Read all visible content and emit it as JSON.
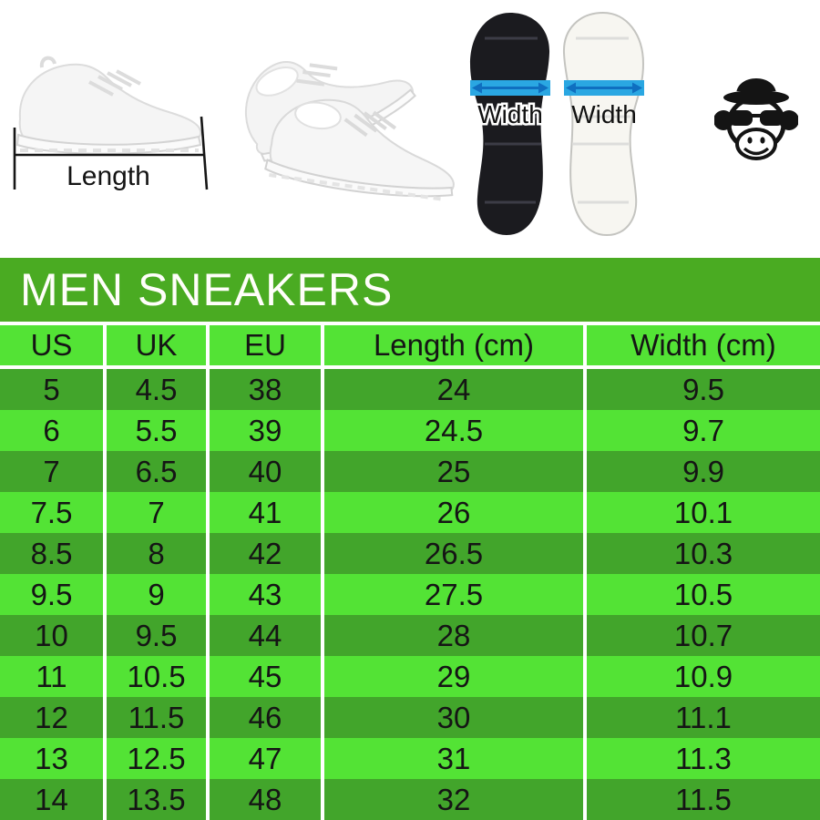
{
  "top_section": {
    "length_measure": {
      "label": "Length"
    },
    "soles": {
      "black_sole_width_label": "Width",
      "white_sole_width_label": "Width"
    },
    "logo": "monkey-with-bowler-hat-and-sunglasses"
  },
  "chart_data": {
    "type": "table",
    "title": "MEN SNEAKERS",
    "columns": [
      "US",
      "UK",
      "EU",
      "Length (cm)",
      "Width (cm)"
    ],
    "rows": [
      [
        "5",
        "4.5",
        "38",
        "24",
        "9.5"
      ],
      [
        "6",
        "5.5",
        "39",
        "24.5",
        "9.7"
      ],
      [
        "7",
        "6.5",
        "40",
        "25",
        "9.9"
      ],
      [
        "7.5",
        "7",
        "41",
        "26",
        "10.1"
      ],
      [
        "8.5",
        "8",
        "42",
        "26.5",
        "10.3"
      ],
      [
        "9.5",
        "9",
        "43",
        "27.5",
        "10.5"
      ],
      [
        "10",
        "9.5",
        "44",
        "28",
        "10.7"
      ],
      [
        "11",
        "10.5",
        "45",
        "29",
        "10.9"
      ],
      [
        "12",
        "11.5",
        "46",
        "30",
        "11.1"
      ],
      [
        "13",
        "12.5",
        "47",
        "31",
        "11.3"
      ],
      [
        "14",
        "13.5",
        "48",
        "32",
        "11.5"
      ]
    ]
  },
  "colors": {
    "title_bar_green": "#4aab22",
    "row_dark_green": "#42a52b",
    "row_light_green": "#53e335",
    "separator_white": "#ffffff",
    "table_text": "#151515",
    "title_text": "#ffffff",
    "width_arrow_blue": "#2aa7e2",
    "width_arrow_dark_blue": "#0f6fc0",
    "black_sole": "#1b1b1f",
    "white_sole": "#f7f6f1"
  }
}
